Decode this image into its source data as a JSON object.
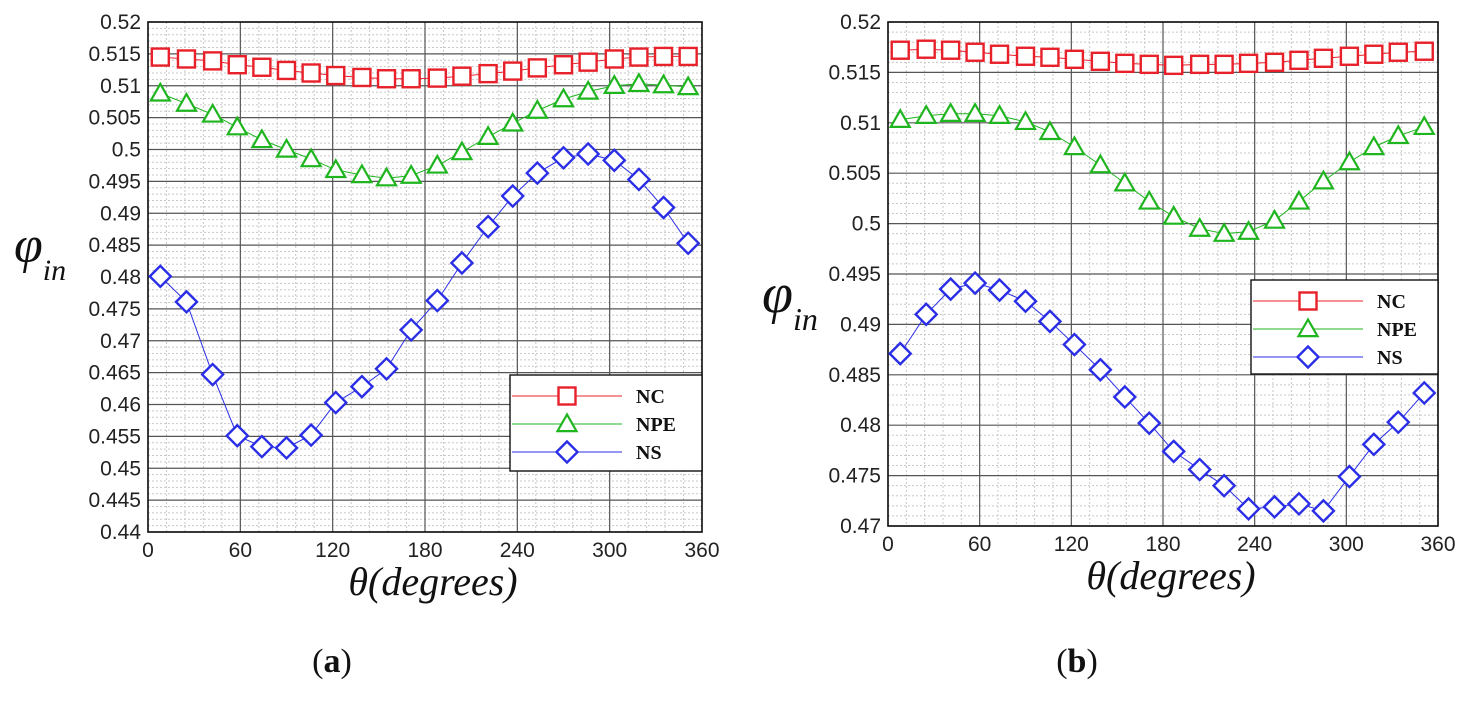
{
  "figure": {
    "panels": [
      {
        "label_open": "(",
        "label_letter": "a",
        "label_close": ")"
      },
      {
        "label_open": "(",
        "label_letter": "b",
        "label_close": ")"
      }
    ]
  },
  "chart_data": [
    {
      "type": "line",
      "panel": "a",
      "xlabel": "θ(degrees)",
      "ylabel_main": "φ",
      "ylabel_sub": "in",
      "xlim": [
        0,
        360
      ],
      "ylim": [
        0.44,
        0.52
      ],
      "xticks": [
        0,
        60,
        120,
        180,
        240,
        300,
        360
      ],
      "xtick_labels": [
        "0",
        "60",
        "120",
        "180",
        "240",
        "300",
        "360"
      ],
      "yticks": [
        0.44,
        0.445,
        0.45,
        0.455,
        0.46,
        0.465,
        0.47,
        0.475,
        0.48,
        0.485,
        0.49,
        0.495,
        0.5,
        0.505,
        0.51,
        0.515,
        0.52
      ],
      "ytick_labels": [
        "0.44",
        "0.445",
        "0.45",
        "0.455",
        "0.46",
        "0.465",
        "0.47",
        "0.475",
        "0.48",
        "0.485",
        "0.49",
        "0.495",
        "0.5",
        "0.505",
        "0.51",
        "0.515",
        "0.52"
      ],
      "grid": true,
      "legend_position": "lower-right",
      "x": [
        8,
        25,
        42,
        58,
        74,
        90,
        106,
        122,
        139,
        155,
        171,
        188,
        204,
        221,
        237,
        253,
        270,
        286,
        303,
        319,
        335,
        351
      ],
      "series": [
        {
          "name": "NC",
          "marker": "square",
          "color": "#e8202a",
          "values": [
            0.5145,
            0.5142,
            0.5139,
            0.5133,
            0.5129,
            0.5124,
            0.512,
            0.5116,
            0.5113,
            0.5111,
            0.5111,
            0.5112,
            0.5115,
            0.5119,
            0.5123,
            0.5128,
            0.5133,
            0.5137,
            0.5142,
            0.5145,
            0.5146,
            0.5146
          ]
        },
        {
          "name": "NPE",
          "marker": "triangle",
          "color": "#1fb51f",
          "values": [
            0.5088,
            0.5072,
            0.5055,
            0.5035,
            0.5015,
            0.5,
            0.4985,
            0.4968,
            0.496,
            0.4955,
            0.4959,
            0.4975,
            0.4996,
            0.502,
            0.5041,
            0.5061,
            0.5079,
            0.5091,
            0.51,
            0.5103,
            0.5101,
            0.5098
          ]
        },
        {
          "name": "NS",
          "marker": "diamond",
          "color": "#2a2ee6",
          "values": [
            0.4801,
            0.4761,
            0.4647,
            0.4551,
            0.4534,
            0.4532,
            0.4552,
            0.4603,
            0.4628,
            0.4656,
            0.4717,
            0.4763,
            0.4822,
            0.4879,
            0.4927,
            0.4963,
            0.4987,
            0.4993,
            0.4983,
            0.4953,
            0.4909,
            0.4853
          ]
        }
      ],
      "legend": [
        "NC",
        "NPE",
        "NS"
      ]
    },
    {
      "type": "line",
      "panel": "b",
      "xlabel": "θ(degrees)",
      "ylabel_main": "φ",
      "ylabel_sub": "in",
      "xlim": [
        0,
        360
      ],
      "ylim": [
        0.47,
        0.52
      ],
      "xticks": [
        0,
        60,
        120,
        180,
        240,
        300,
        360
      ],
      "xtick_labels": [
        "0",
        "60",
        "120",
        "180",
        "240",
        "300",
        "360"
      ],
      "yticks": [
        0.47,
        0.475,
        0.48,
        0.485,
        0.49,
        0.495,
        0.5,
        0.505,
        0.51,
        0.515,
        0.52
      ],
      "ytick_labels": [
        "0.47",
        "0.475",
        "0.48",
        "0.485",
        "0.49",
        "0.495",
        "0.5",
        "0.505",
        "0.51",
        "0.515",
        "0.52"
      ],
      "grid": true,
      "legend_position": "center-right",
      "x": [
        8,
        25,
        41,
        57,
        73,
        90,
        106,
        122,
        139,
        155,
        171,
        187,
        204,
        220,
        236,
        253,
        269,
        285,
        302,
        318,
        334,
        351
      ],
      "series": [
        {
          "name": "NC",
          "marker": "square",
          "color": "#e8202a",
          "values": [
            0.5172,
            0.5173,
            0.5172,
            0.517,
            0.5168,
            0.5166,
            0.5165,
            0.5163,
            0.5161,
            0.5159,
            0.5158,
            0.5157,
            0.5158,
            0.5158,
            0.5159,
            0.516,
            0.5162,
            0.5164,
            0.5166,
            0.5168,
            0.517,
            0.5171
          ]
        },
        {
          "name": "NPE",
          "marker": "triangle",
          "color": "#1fb51f",
          "values": [
            0.5103,
            0.5107,
            0.5109,
            0.5109,
            0.5107,
            0.5101,
            0.5091,
            0.5076,
            0.5058,
            0.504,
            0.5022,
            0.5007,
            0.4995,
            0.499,
            0.4992,
            0.5003,
            0.5022,
            0.5042,
            0.5061,
            0.5076,
            0.5087,
            0.5096
          ]
        },
        {
          "name": "NS",
          "marker": "diamond",
          "color": "#2a2ee6",
          "values": [
            0.4871,
            0.491,
            0.4935,
            0.4941,
            0.4934,
            0.4923,
            0.4903,
            0.488,
            0.4855,
            0.4828,
            0.4802,
            0.4774,
            0.4756,
            0.474,
            0.4717,
            0.4719,
            0.4722,
            0.4715,
            0.4749,
            0.4781,
            0.4803,
            0.4832
          ]
        }
      ],
      "legend": [
        "NC",
        "NPE",
        "NS"
      ]
    }
  ]
}
